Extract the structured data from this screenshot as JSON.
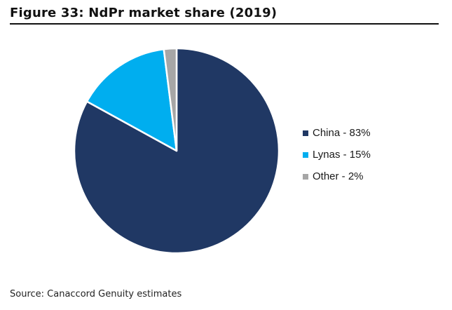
{
  "figure": {
    "title": "Figure 33: NdPr market share (2019)",
    "source": "Source: Canaccord Genuity estimates"
  },
  "chart_data": {
    "type": "pie",
    "title": "Figure 33: NdPr market share (2019)",
    "start_angle": "12 o'clock, clockwise",
    "legend_position": "right",
    "slices": [
      {
        "name": "China",
        "value": 83,
        "label": "China - 83%",
        "color": "#203864"
      },
      {
        "name": "Lynas",
        "value": 15,
        "label": "Lynas - 15%",
        "color": "#00AEEF"
      },
      {
        "name": "Other",
        "value": 2,
        "label": "Other - 2%",
        "color": "#A6A6A6"
      }
    ]
  }
}
